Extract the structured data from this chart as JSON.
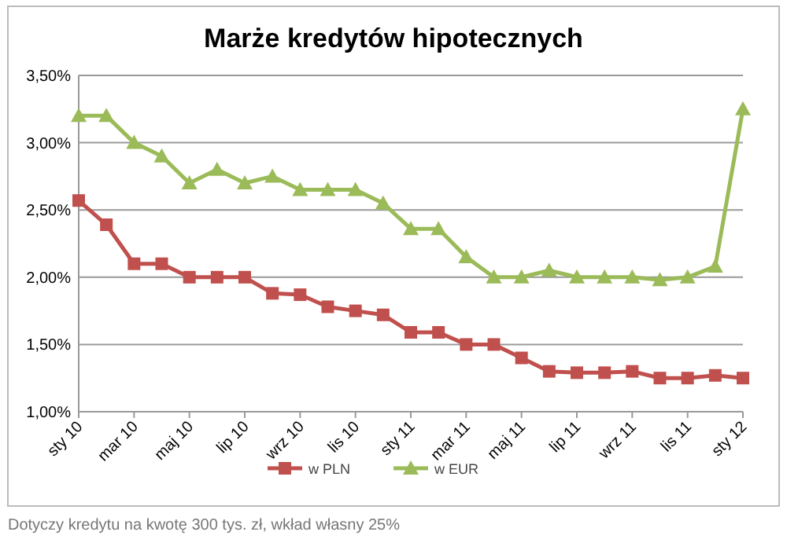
{
  "chart_data": {
    "type": "line",
    "title": "Marże kredytów hipotecznych",
    "categories": [
      "sty 10",
      null,
      "mar 10",
      null,
      "maj 10",
      null,
      "lip 10",
      null,
      "wrz 10",
      null,
      "lis 10",
      null,
      "sty 11",
      null,
      "mar 11",
      null,
      "maj 11",
      null,
      "lip 11",
      null,
      "wrz 11",
      null,
      "lis 11",
      null,
      "sty 12"
    ],
    "series": [
      {
        "name": "w PLN",
        "color": "#c0504d",
        "marker": "square",
        "values": [
          2.57,
          2.39,
          2.1,
          2.1,
          2.0,
          2.0,
          2.0,
          1.88,
          1.87,
          1.78,
          1.75,
          1.72,
          1.59,
          1.59,
          1.5,
          1.5,
          1.4,
          1.3,
          1.29,
          1.29,
          1.3,
          1.25,
          1.25,
          1.27,
          1.25
        ]
      },
      {
        "name": "w EUR",
        "color": "#9bbb59",
        "marker": "triangle",
        "values": [
          3.2,
          3.2,
          3.0,
          2.9,
          2.7,
          2.8,
          2.7,
          2.75,
          2.65,
          2.65,
          2.65,
          2.55,
          2.36,
          2.36,
          2.15,
          2.0,
          2.0,
          2.05,
          2.0,
          2.0,
          2.0,
          1.98,
          2.0,
          2.08,
          3.25
        ]
      }
    ],
    "ylim": [
      1.0,
      3.5
    ],
    "yticks": [
      {
        "value": 1.0,
        "label": "1,00%"
      },
      {
        "value": 1.5,
        "label": "1,50%"
      },
      {
        "value": 2.0,
        "label": "2,00%"
      },
      {
        "value": 2.5,
        "label": "2,50%"
      },
      {
        "value": 3.0,
        "label": "3,00%"
      },
      {
        "value": 3.5,
        "label": "3,50%"
      }
    ],
    "grid": "y",
    "legend": "bottom",
    "line_style": "solid",
    "annotations": [
      "Dotyczy kredytu na kwotę 300 tys. zł, wkład własny 25%"
    ]
  }
}
